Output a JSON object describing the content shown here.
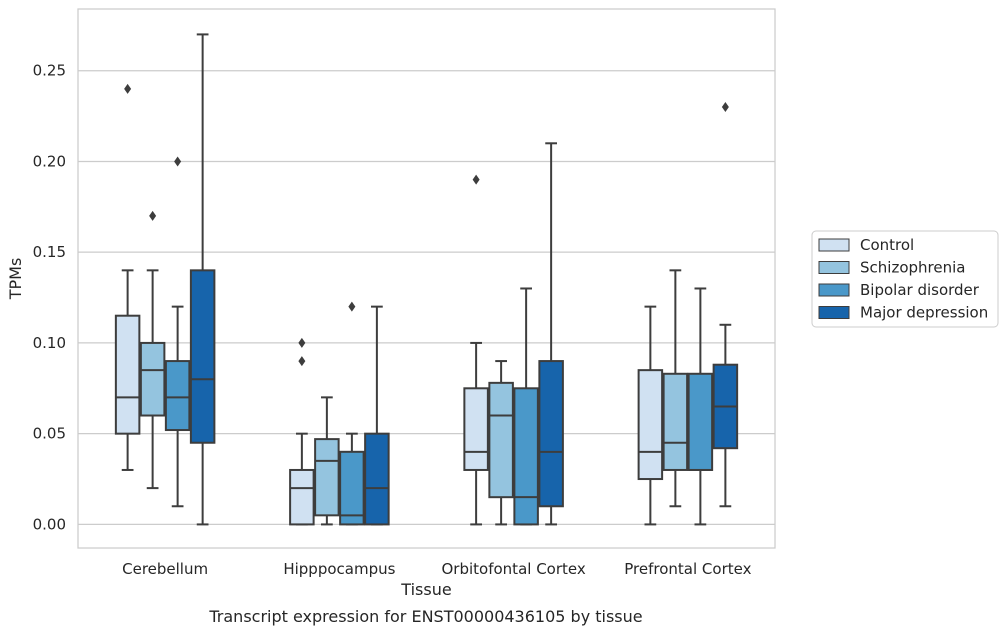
{
  "chart_data": {
    "type": "box",
    "title": "",
    "caption": "Transcript expression for ENST00000436105 by tissue",
    "xlabel": "Tissue",
    "ylabel": "TPMs",
    "ylim": [
      -0.013,
      0.284
    ],
    "yticks": [
      "0.00",
      "0.05",
      "0.10",
      "0.15",
      "0.20",
      "0.25"
    ],
    "ytick_values": [
      0,
      0.05,
      0.1,
      0.15,
      0.2,
      0.25
    ],
    "grid": true,
    "legend_position": "right",
    "categories": [
      "Cerebellum",
      "Hipppocampus",
      "Orbitofontal Cortex",
      "Prefrontal Cortex"
    ],
    "series": [
      {
        "name": "Control",
        "color": "#d0e1f2",
        "boxes": [
          {
            "whisker_low": 0.03,
            "q1": 0.05,
            "median": 0.07,
            "q3": 0.115,
            "whisker_high": 0.14,
            "outliers": [
              0.24
            ]
          },
          {
            "whisker_low": 0.0,
            "q1": 0.0,
            "median": 0.02,
            "q3": 0.03,
            "whisker_high": 0.05,
            "outliers": [
              0.09,
              0.1
            ]
          },
          {
            "whisker_low": 0.0,
            "q1": 0.03,
            "median": 0.04,
            "q3": 0.075,
            "whisker_high": 0.1,
            "outliers": [
              0.19
            ]
          },
          {
            "whisker_low": 0.0,
            "q1": 0.025,
            "median": 0.04,
            "q3": 0.085,
            "whisker_high": 0.12,
            "outliers": []
          }
        ]
      },
      {
        "name": "Schizophrenia",
        "color": "#94c4df",
        "boxes": [
          {
            "whisker_low": 0.02,
            "q1": 0.06,
            "median": 0.085,
            "q3": 0.1,
            "whisker_high": 0.14,
            "outliers": [
              0.17
            ]
          },
          {
            "whisker_low": 0.0,
            "q1": 0.005,
            "median": 0.035,
            "q3": 0.047,
            "whisker_high": 0.07,
            "outliers": []
          },
          {
            "whisker_low": 0.0,
            "q1": 0.015,
            "median": 0.06,
            "q3": 0.078,
            "whisker_high": 0.09,
            "outliers": []
          },
          {
            "whisker_low": 0.01,
            "q1": 0.03,
            "median": 0.045,
            "q3": 0.083,
            "whisker_high": 0.14,
            "outliers": []
          }
        ]
      },
      {
        "name": "Bipolar disorder",
        "color": "#4a98c9",
        "boxes": [
          {
            "whisker_low": 0.01,
            "q1": 0.052,
            "median": 0.07,
            "q3": 0.09,
            "whisker_high": 0.12,
            "outliers": [
              0.2
            ]
          },
          {
            "whisker_low": 0.0,
            "q1": 0.0,
            "median": 0.005,
            "q3": 0.04,
            "whisker_high": 0.05,
            "outliers": [
              0.12
            ]
          },
          {
            "whisker_low": 0.0,
            "q1": 0.0,
            "median": 0.015,
            "q3": 0.075,
            "whisker_high": 0.13,
            "outliers": []
          },
          {
            "whisker_low": 0.0,
            "q1": 0.03,
            "median": 0.03,
            "q3": 0.083,
            "whisker_high": 0.13,
            "outliers": []
          }
        ]
      },
      {
        "name": "Major depression",
        "color": "#1764ab",
        "boxes": [
          {
            "whisker_low": 0.0,
            "q1": 0.045,
            "median": 0.08,
            "q3": 0.14,
            "whisker_high": 0.27,
            "outliers": []
          },
          {
            "whisker_low": 0.0,
            "q1": 0.0,
            "median": 0.02,
            "q3": 0.05,
            "whisker_high": 0.12,
            "outliers": []
          },
          {
            "whisker_low": 0.0,
            "q1": 0.01,
            "median": 0.04,
            "q3": 0.09,
            "whisker_high": 0.21,
            "outliers": []
          },
          {
            "whisker_low": 0.01,
            "q1": 0.042,
            "median": 0.065,
            "q3": 0.088,
            "whisker_high": 0.11,
            "outliers": [
              0.23
            ]
          }
        ]
      }
    ]
  }
}
